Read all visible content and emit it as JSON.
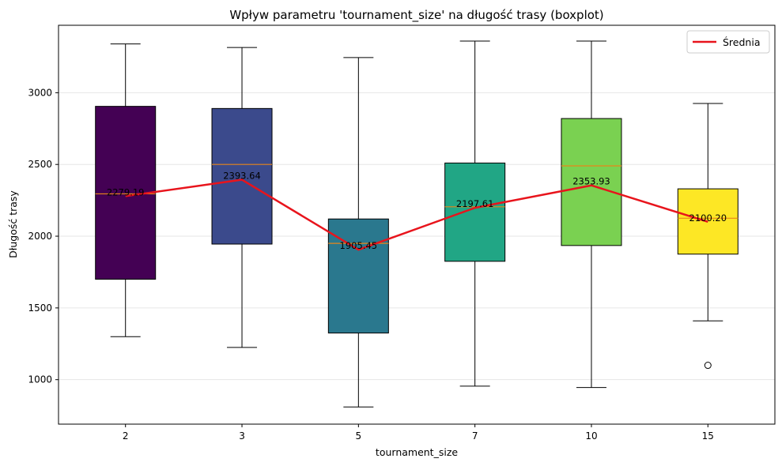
{
  "chart_data": {
    "type": "box",
    "title": "Wpływ parametru 'tournament_size' na długość trasy (boxplot)",
    "xlabel": "tournament_size",
    "ylabel": "Długość trasy",
    "categories": [
      "2",
      "3",
      "5",
      "7",
      "10",
      "15"
    ],
    "ylim": [
      690,
      3470
    ],
    "yticks": [
      1000,
      1500,
      2000,
      2500,
      3000
    ],
    "grid": "y",
    "boxes": [
      {
        "category": "2",
        "whisker_low": 1300,
        "q1": 1700,
        "median": 2295,
        "q3": 2905,
        "whisker_high": 3340,
        "outliers": [],
        "color": "#440154"
      },
      {
        "category": "3",
        "whisker_low": 1225,
        "q1": 1945,
        "median": 2500,
        "q3": 2890,
        "whisker_high": 3315,
        "outliers": [],
        "color": "#3b4a8c"
      },
      {
        "category": "5",
        "whisker_low": 810,
        "q1": 1325,
        "median": 1950,
        "q3": 2120,
        "whisker_high": 3245,
        "outliers": [],
        "color": "#2a788e"
      },
      {
        "category": "7",
        "whisker_low": 955,
        "q1": 1825,
        "median": 2205,
        "q3": 2510,
        "whisker_high": 3360,
        "outliers": [],
        "color": "#21a685"
      },
      {
        "category": "10",
        "whisker_low": 945,
        "q1": 1935,
        "median": 2490,
        "q3": 2820,
        "whisker_high": 3360,
        "outliers": [],
        "color": "#7ad151"
      },
      {
        "category": "15",
        "whisker_low": 1410,
        "q1": 1875,
        "median": 2125,
        "q3": 2330,
        "whisker_high": 2925,
        "outliers": [
          1100
        ],
        "color": "#fde725"
      }
    ],
    "series": [
      {
        "name": "Średnia",
        "type": "line",
        "color": "#e8141c",
        "values": [
          2279.19,
          2393.64,
          1905.45,
          2197.61,
          2353.93,
          2100.2
        ]
      }
    ],
    "data_labels": [
      "2279.19",
      "2393.64",
      "1905.45",
      "2197.61",
      "2353.93",
      "2100.20"
    ],
    "legend": {
      "position": "top-right",
      "entries": [
        "Średnia"
      ]
    },
    "median_color": "#e8861a"
  }
}
